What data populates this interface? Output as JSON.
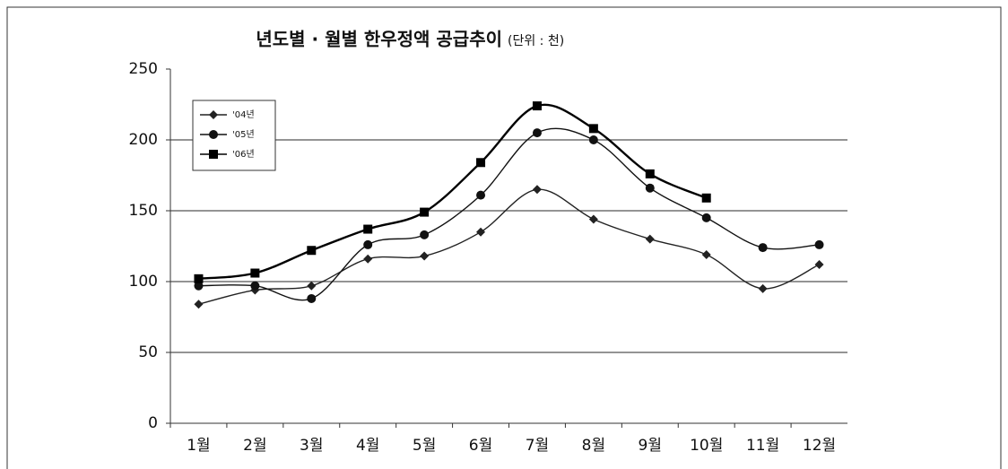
{
  "chart_data": {
    "type": "line",
    "title": "년도별 · 월별 한우정액 공급추이",
    "unit_note": "(단위 : 천)",
    "categories": [
      "1월",
      "2월",
      "3월",
      "4월",
      "5월",
      "6월",
      "7월",
      "8월",
      "9월",
      "10월",
      "11월",
      "12월"
    ],
    "series": [
      {
        "name": "'04년",
        "color": "#222222",
        "marker": "diamond",
        "values": [
          84,
          94,
          97,
          116,
          118,
          135,
          165,
          144,
          130,
          119,
          95,
          112
        ]
      },
      {
        "name": "'05년",
        "color": "#111111",
        "marker": "circle",
        "values": [
          97,
          97,
          88,
          126,
          133,
          161,
          205,
          200,
          166,
          145,
          124,
          126
        ]
      },
      {
        "name": "'06년",
        "color": "#000000",
        "marker": "square",
        "values": [
          102,
          106,
          122,
          137,
          149,
          184,
          224,
          208,
          176,
          159,
          null,
          null
        ]
      }
    ],
    "ylim": [
      0,
      250
    ],
    "yticks": [
      0,
      50,
      100,
      150,
      200,
      250
    ],
    "grid": true,
    "legend": "top-left"
  }
}
